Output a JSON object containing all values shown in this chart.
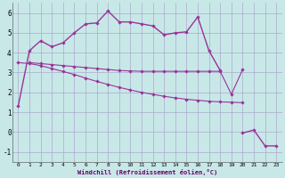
{
  "background_color": "#c8e8e8",
  "grid_color": "#aaaacc",
  "line_color": "#993399",
  "ylabel_values": [
    -1,
    0,
    1,
    2,
    3,
    4,
    5,
    6
  ],
  "xlabel_values": [
    0,
    1,
    2,
    3,
    4,
    5,
    6,
    7,
    8,
    9,
    10,
    11,
    12,
    13,
    14,
    15,
    16,
    17,
    18,
    19,
    20,
    21,
    22,
    23
  ],
  "xlabel": "Windchill (Refroidissement éolien,°C)",
  "ylim": [
    -1.5,
    6.5
  ],
  "xlim": [
    -0.5,
    23.5
  ],
  "line1_x": [
    0,
    1,
    2,
    3,
    4,
    5,
    6,
    7,
    8,
    9,
    10,
    11,
    12,
    13,
    14,
    15,
    16,
    17,
    18,
    20,
    21,
    22,
    23
  ],
  "line1_y": [
    1.3,
    4.1,
    4.6,
    4.3,
    4.5,
    5.0,
    5.45,
    5.5,
    6.1,
    5.55,
    5.55,
    5.45,
    5.35,
    4.9,
    5.0,
    5.05,
    5.8,
    4.1,
    3.1,
    -0.05,
    0.1,
    -0.7,
    -0.7
  ],
  "line1_breaks": [
    18,
    20
  ],
  "line2_x": [
    1,
    2,
    3,
    4,
    5,
    6,
    7,
    8,
    9,
    10,
    11,
    12,
    13,
    14,
    15,
    16,
    17,
    18,
    19,
    20
  ],
  "line2_y": [
    3.5,
    3.45,
    3.4,
    3.35,
    3.3,
    3.25,
    3.2,
    3.15,
    3.1,
    3.08,
    3.06,
    3.06,
    3.06,
    3.06,
    3.06,
    3.06,
    3.06,
    3.06,
    1.9,
    3.15
  ],
  "line3_x": [
    0,
    1,
    2,
    3,
    4,
    5,
    6,
    7,
    8,
    9,
    10,
    11,
    12,
    13,
    14,
    15,
    16,
    17,
    18,
    19,
    20
  ],
  "line3_y": [
    3.5,
    3.45,
    3.35,
    3.2,
    3.05,
    2.9,
    2.72,
    2.55,
    2.4,
    2.25,
    2.12,
    2.0,
    1.9,
    1.8,
    1.72,
    1.65,
    1.6,
    1.55,
    1.52,
    1.5,
    1.48
  ]
}
